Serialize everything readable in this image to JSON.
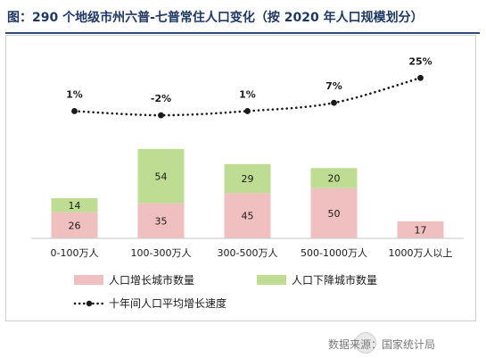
{
  "title": "图：290 个地级市州六普-七普常住人口变化（按 2020 年人口规模划分）",
  "colors": {
    "increase": "#f0c0c0",
    "decrease": "#bfdc93",
    "line": "#1a1a1a",
    "text": "#1a1a1a",
    "axis": "#d0d0d0"
  },
  "watermark": "数据来源：国家统计局",
  "chart_data": {
    "type": "bar",
    "stacked": true,
    "categories": [
      "0-100万人",
      "100-300万人",
      "300-500万人",
      "500-1000万人",
      "1000万人以上"
    ],
    "series": [
      {
        "name": "人口增长城市数量",
        "values": [
          26,
          35,
          45,
          50,
          17
        ],
        "color": "#f0c0c0"
      },
      {
        "name": "人口下降城市数量",
        "values": [
          14,
          54,
          29,
          20,
          0
        ],
        "color": "#bfdc93"
      }
    ],
    "line_series": {
      "name": "十年间人口平均增长速度",
      "values": [
        1,
        -2,
        1,
        7,
        25
      ],
      "labels": [
        "1%",
        "-2%",
        "1%",
        "7%",
        "25%"
      ]
    },
    "ylim": [
      0,
      100
    ],
    "legend_position": "bottom"
  }
}
